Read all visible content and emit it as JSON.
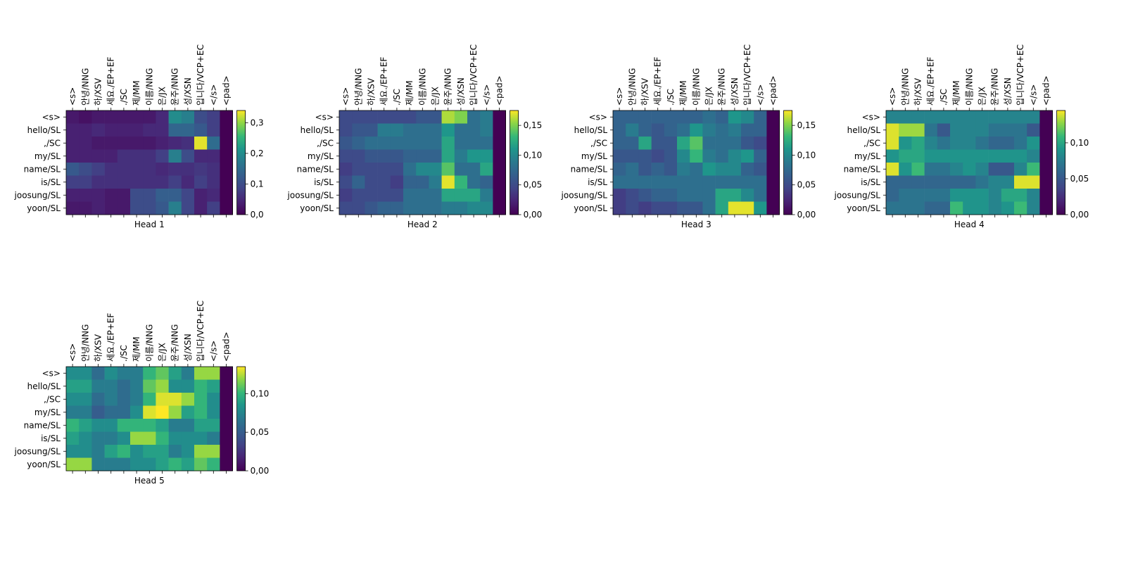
{
  "chart_data": {
    "type": "heatmap",
    "colormap": "viridis",
    "key_labels": [
      "<s>",
      "안녕/NNG",
      "하/XSV",
      "세요./EP+EF",
      "./SC",
      "제/MM",
      "이름/NNG",
      "은/JX",
      "윤주/NNG",
      "성/XSN",
      "입니다/VCP+EC",
      "</s>",
      "<pad>"
    ],
    "query_labels": [
      "<s>",
      "hello/SL",
      ",/SC",
      "my/SL",
      "name/SL",
      "is/SL",
      "joosung/SL",
      "yoon/SL"
    ],
    "heads": [
      {
        "title": "Head 1",
        "colorbar_ticks": [
          "0,0",
          "0,1",
          "0,2",
          "0,3"
        ],
        "vmax": 0.34,
        "values": [
          [
            0.03,
            0.02,
            0.03,
            0.03,
            0.03,
            0.03,
            0.03,
            0.05,
            0.2,
            0.18,
            0.1,
            0.08,
            0.0
          ],
          [
            0.04,
            0.04,
            0.05,
            0.04,
            0.04,
            0.04,
            0.05,
            0.05,
            0.14,
            0.14,
            0.12,
            0.08,
            0.0
          ],
          [
            0.04,
            0.04,
            0.03,
            0.03,
            0.03,
            0.03,
            0.03,
            0.04,
            0.05,
            0.06,
            0.33,
            0.15,
            0.0
          ],
          [
            0.04,
            0.04,
            0.04,
            0.04,
            0.06,
            0.06,
            0.06,
            0.08,
            0.18,
            0.1,
            0.05,
            0.05,
            0.0
          ],
          [
            0.12,
            0.1,
            0.08,
            0.06,
            0.06,
            0.06,
            0.06,
            0.05,
            0.06,
            0.06,
            0.07,
            0.06,
            0.0
          ],
          [
            0.08,
            0.08,
            0.06,
            0.06,
            0.06,
            0.06,
            0.06,
            0.06,
            0.08,
            0.05,
            0.08,
            0.06,
            0.0
          ],
          [
            0.04,
            0.04,
            0.04,
            0.03,
            0.03,
            0.1,
            0.1,
            0.13,
            0.13,
            0.09,
            0.04,
            0.05,
            0.0
          ],
          [
            0.03,
            0.03,
            0.04,
            0.03,
            0.03,
            0.1,
            0.1,
            0.12,
            0.18,
            0.09,
            0.04,
            0.08,
            0.0
          ]
        ]
      },
      {
        "title": "Head 2",
        "colorbar_ticks": [
          "0,00",
          "0,05",
          "0,10",
          "0,15"
        ],
        "vmax": 0.175,
        "values": [
          [
            0.05,
            0.05,
            0.05,
            0.05,
            0.05,
            0.05,
            0.06,
            0.06,
            0.16,
            0.15,
            0.08,
            0.09,
            0.0
          ],
          [
            0.05,
            0.06,
            0.06,
            0.09,
            0.09,
            0.08,
            0.08,
            0.08,
            0.11,
            0.08,
            0.08,
            0.09,
            0.0
          ],
          [
            0.06,
            0.07,
            0.08,
            0.08,
            0.08,
            0.08,
            0.08,
            0.08,
            0.12,
            0.08,
            0.08,
            0.08,
            0.0
          ],
          [
            0.05,
            0.05,
            0.06,
            0.06,
            0.06,
            0.07,
            0.07,
            0.07,
            0.12,
            0.09,
            0.11,
            0.11,
            0.0
          ],
          [
            0.04,
            0.05,
            0.05,
            0.05,
            0.05,
            0.08,
            0.1,
            0.1,
            0.14,
            0.08,
            0.08,
            0.12,
            0.0
          ],
          [
            0.05,
            0.07,
            0.05,
            0.05,
            0.04,
            0.07,
            0.07,
            0.09,
            0.17,
            0.13,
            0.08,
            0.07,
            0.0
          ],
          [
            0.04,
            0.05,
            0.05,
            0.05,
            0.05,
            0.08,
            0.08,
            0.08,
            0.12,
            0.12,
            0.12,
            0.09,
            0.0
          ],
          [
            0.05,
            0.05,
            0.06,
            0.07,
            0.07,
            0.08,
            0.08,
            0.08,
            0.09,
            0.09,
            0.1,
            0.1,
            0.0
          ]
        ]
      },
      {
        "title": "Head 3",
        "colorbar_ticks": [
          "0,00",
          "0,05",
          "0,10",
          "0,15"
        ],
        "vmax": 0.175,
        "values": [
          [
            0.07,
            0.07,
            0.07,
            0.07,
            0.07,
            0.07,
            0.07,
            0.08,
            0.07,
            0.11,
            0.1,
            0.07,
            0.0
          ],
          [
            0.07,
            0.09,
            0.07,
            0.06,
            0.07,
            0.08,
            0.11,
            0.09,
            0.08,
            0.09,
            0.07,
            0.07,
            0.0
          ],
          [
            0.07,
            0.07,
            0.12,
            0.06,
            0.06,
            0.12,
            0.14,
            0.08,
            0.08,
            0.08,
            0.06,
            0.05,
            0.0
          ],
          [
            0.06,
            0.06,
            0.06,
            0.05,
            0.06,
            0.1,
            0.13,
            0.09,
            0.08,
            0.1,
            0.11,
            0.07,
            0.0
          ],
          [
            0.07,
            0.08,
            0.06,
            0.07,
            0.06,
            0.09,
            0.08,
            0.11,
            0.1,
            0.1,
            0.07,
            0.06,
            0.0
          ],
          [
            0.08,
            0.08,
            0.08,
            0.08,
            0.08,
            0.08,
            0.08,
            0.08,
            0.08,
            0.08,
            0.08,
            0.08,
            0.0
          ],
          [
            0.04,
            0.05,
            0.06,
            0.07,
            0.07,
            0.08,
            0.08,
            0.08,
            0.12,
            0.12,
            0.1,
            0.08,
            0.0
          ],
          [
            0.04,
            0.05,
            0.04,
            0.05,
            0.05,
            0.06,
            0.06,
            0.08,
            0.12,
            0.17,
            0.17,
            0.11,
            0.0
          ]
        ]
      },
      {
        "title": "Head 4",
        "colorbar_ticks": [
          "0,00",
          "0,05",
          "0,10"
        ],
        "vmax": 0.145,
        "values": [
          [
            0.08,
            0.08,
            0.08,
            0.08,
            0.08,
            0.08,
            0.08,
            0.08,
            0.08,
            0.08,
            0.08,
            0.08,
            0.0
          ],
          [
            0.14,
            0.13,
            0.13,
            0.07,
            0.05,
            0.08,
            0.08,
            0.08,
            0.07,
            0.07,
            0.07,
            0.05,
            0.0
          ],
          [
            0.14,
            0.09,
            0.1,
            0.08,
            0.07,
            0.08,
            0.08,
            0.07,
            0.06,
            0.06,
            0.07,
            0.09,
            0.0
          ],
          [
            0.09,
            0.1,
            0.1,
            0.09,
            0.09,
            0.09,
            0.09,
            0.09,
            0.09,
            0.09,
            0.09,
            0.08,
            0.0
          ],
          [
            0.14,
            0.09,
            0.11,
            0.07,
            0.07,
            0.08,
            0.09,
            0.08,
            0.05,
            0.05,
            0.08,
            0.11,
            0.0
          ],
          [
            0.06,
            0.06,
            0.06,
            0.06,
            0.06,
            0.06,
            0.06,
            0.07,
            0.08,
            0.08,
            0.14,
            0.14,
            0.0
          ],
          [
            0.06,
            0.07,
            0.07,
            0.07,
            0.07,
            0.09,
            0.09,
            0.09,
            0.08,
            0.1,
            0.1,
            0.08,
            0.0
          ],
          [
            0.07,
            0.07,
            0.07,
            0.06,
            0.06,
            0.11,
            0.09,
            0.09,
            0.08,
            0.09,
            0.11,
            0.08,
            0.0
          ]
        ]
      },
      {
        "title": "Head 5",
        "colorbar_ticks": [
          "0,00",
          "0,05",
          "0,10"
        ],
        "vmax": 0.135,
        "values": [
          [
            0.08,
            0.08,
            0.06,
            0.08,
            0.07,
            0.07,
            0.1,
            0.11,
            0.09,
            0.07,
            0.12,
            0.12,
            0.0
          ],
          [
            0.09,
            0.09,
            0.07,
            0.07,
            0.06,
            0.07,
            0.11,
            0.12,
            0.08,
            0.08,
            0.1,
            0.09,
            0.0
          ],
          [
            0.08,
            0.08,
            0.06,
            0.07,
            0.06,
            0.07,
            0.1,
            0.13,
            0.13,
            0.12,
            0.1,
            0.08,
            0.0
          ],
          [
            0.07,
            0.07,
            0.05,
            0.06,
            0.06,
            0.08,
            0.13,
            0.135,
            0.12,
            0.09,
            0.1,
            0.08,
            0.0
          ],
          [
            0.1,
            0.09,
            0.08,
            0.08,
            0.1,
            0.1,
            0.1,
            0.09,
            0.07,
            0.07,
            0.09,
            0.09,
            0.0
          ],
          [
            0.09,
            0.08,
            0.07,
            0.07,
            0.08,
            0.12,
            0.12,
            0.1,
            0.08,
            0.08,
            0.08,
            0.07,
            0.0
          ],
          [
            0.08,
            0.08,
            0.07,
            0.09,
            0.1,
            0.08,
            0.09,
            0.09,
            0.07,
            0.08,
            0.12,
            0.12,
            0.0
          ],
          [
            0.12,
            0.12,
            0.07,
            0.07,
            0.07,
            0.08,
            0.08,
            0.09,
            0.1,
            0.09,
            0.11,
            0.1,
            0.0
          ]
        ]
      }
    ]
  }
}
